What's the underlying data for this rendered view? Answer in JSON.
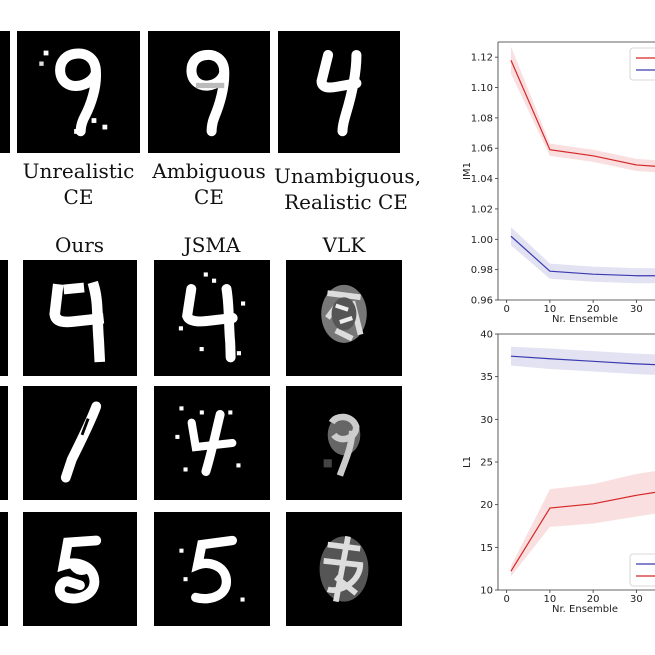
{
  "top_row": {
    "captions": [
      {
        "line1": "Unrealistic",
        "line2": "CE"
      },
      {
        "line1": "Ambiguous",
        "line2": "CE"
      },
      {
        "line1": "Unambiguous,",
        "line2": "Realistic CE"
      }
    ]
  },
  "method_headers": [
    "Ours",
    "JSMA",
    "VLK"
  ],
  "chart_data": [
    {
      "type": "line",
      "ylabel": "IM1",
      "xlabel": "Nr. Ensemble",
      "ylim": [
        0.96,
        1.13
      ],
      "xlim": [
        -2,
        35
      ],
      "yticks": [
        "0.96",
        "0.98",
        "1.00",
        "1.02",
        "1.04",
        "1.06",
        "1.08",
        "1.10",
        "1.12"
      ],
      "xticks": [
        "0",
        "10",
        "20",
        "30"
      ],
      "legend": "top-right",
      "series": [
        {
          "color": "#d62728",
          "x": [
            1,
            10,
            20,
            30,
            35
          ],
          "values": [
            1.118,
            1.059,
            1.055,
            1.049,
            1.048
          ],
          "band": [
            0.009,
            0.004,
            0.004,
            0.004,
            0.004
          ]
        },
        {
          "color": "#3b3bb0",
          "x": [
            1,
            10,
            20,
            30,
            35
          ],
          "values": [
            1.002,
            0.979,
            0.977,
            0.976,
            0.976
          ],
          "band": [
            0.006,
            0.005,
            0.005,
            0.005,
            0.005
          ]
        }
      ]
    },
    {
      "type": "line",
      "ylabel": "L1",
      "xlabel": "Nr. Ensemble",
      "ylim": [
        10,
        40
      ],
      "xlim": [
        -2,
        35
      ],
      "yticks": [
        "10",
        "15",
        "20",
        "25",
        "30",
        "35",
        "40"
      ],
      "xticks": [
        "0",
        "10",
        "20",
        "30"
      ],
      "legend": "bottom-right",
      "series": [
        {
          "color": "#3b3bb0",
          "x": [
            1,
            10,
            20,
            30,
            35
          ],
          "values": [
            37.4,
            37.1,
            36.8,
            36.5,
            36.4
          ],
          "band": [
            1.1,
            1.2,
            1.2,
            1.2,
            1.2
          ]
        },
        {
          "color": "#d62728",
          "x": [
            1,
            10,
            20,
            30,
            35
          ],
          "values": [
            12.2,
            19.6,
            20.1,
            21.1,
            21.5
          ],
          "band": [
            0.6,
            2.2,
            2.3,
            2.5,
            2.5
          ]
        }
      ]
    }
  ]
}
